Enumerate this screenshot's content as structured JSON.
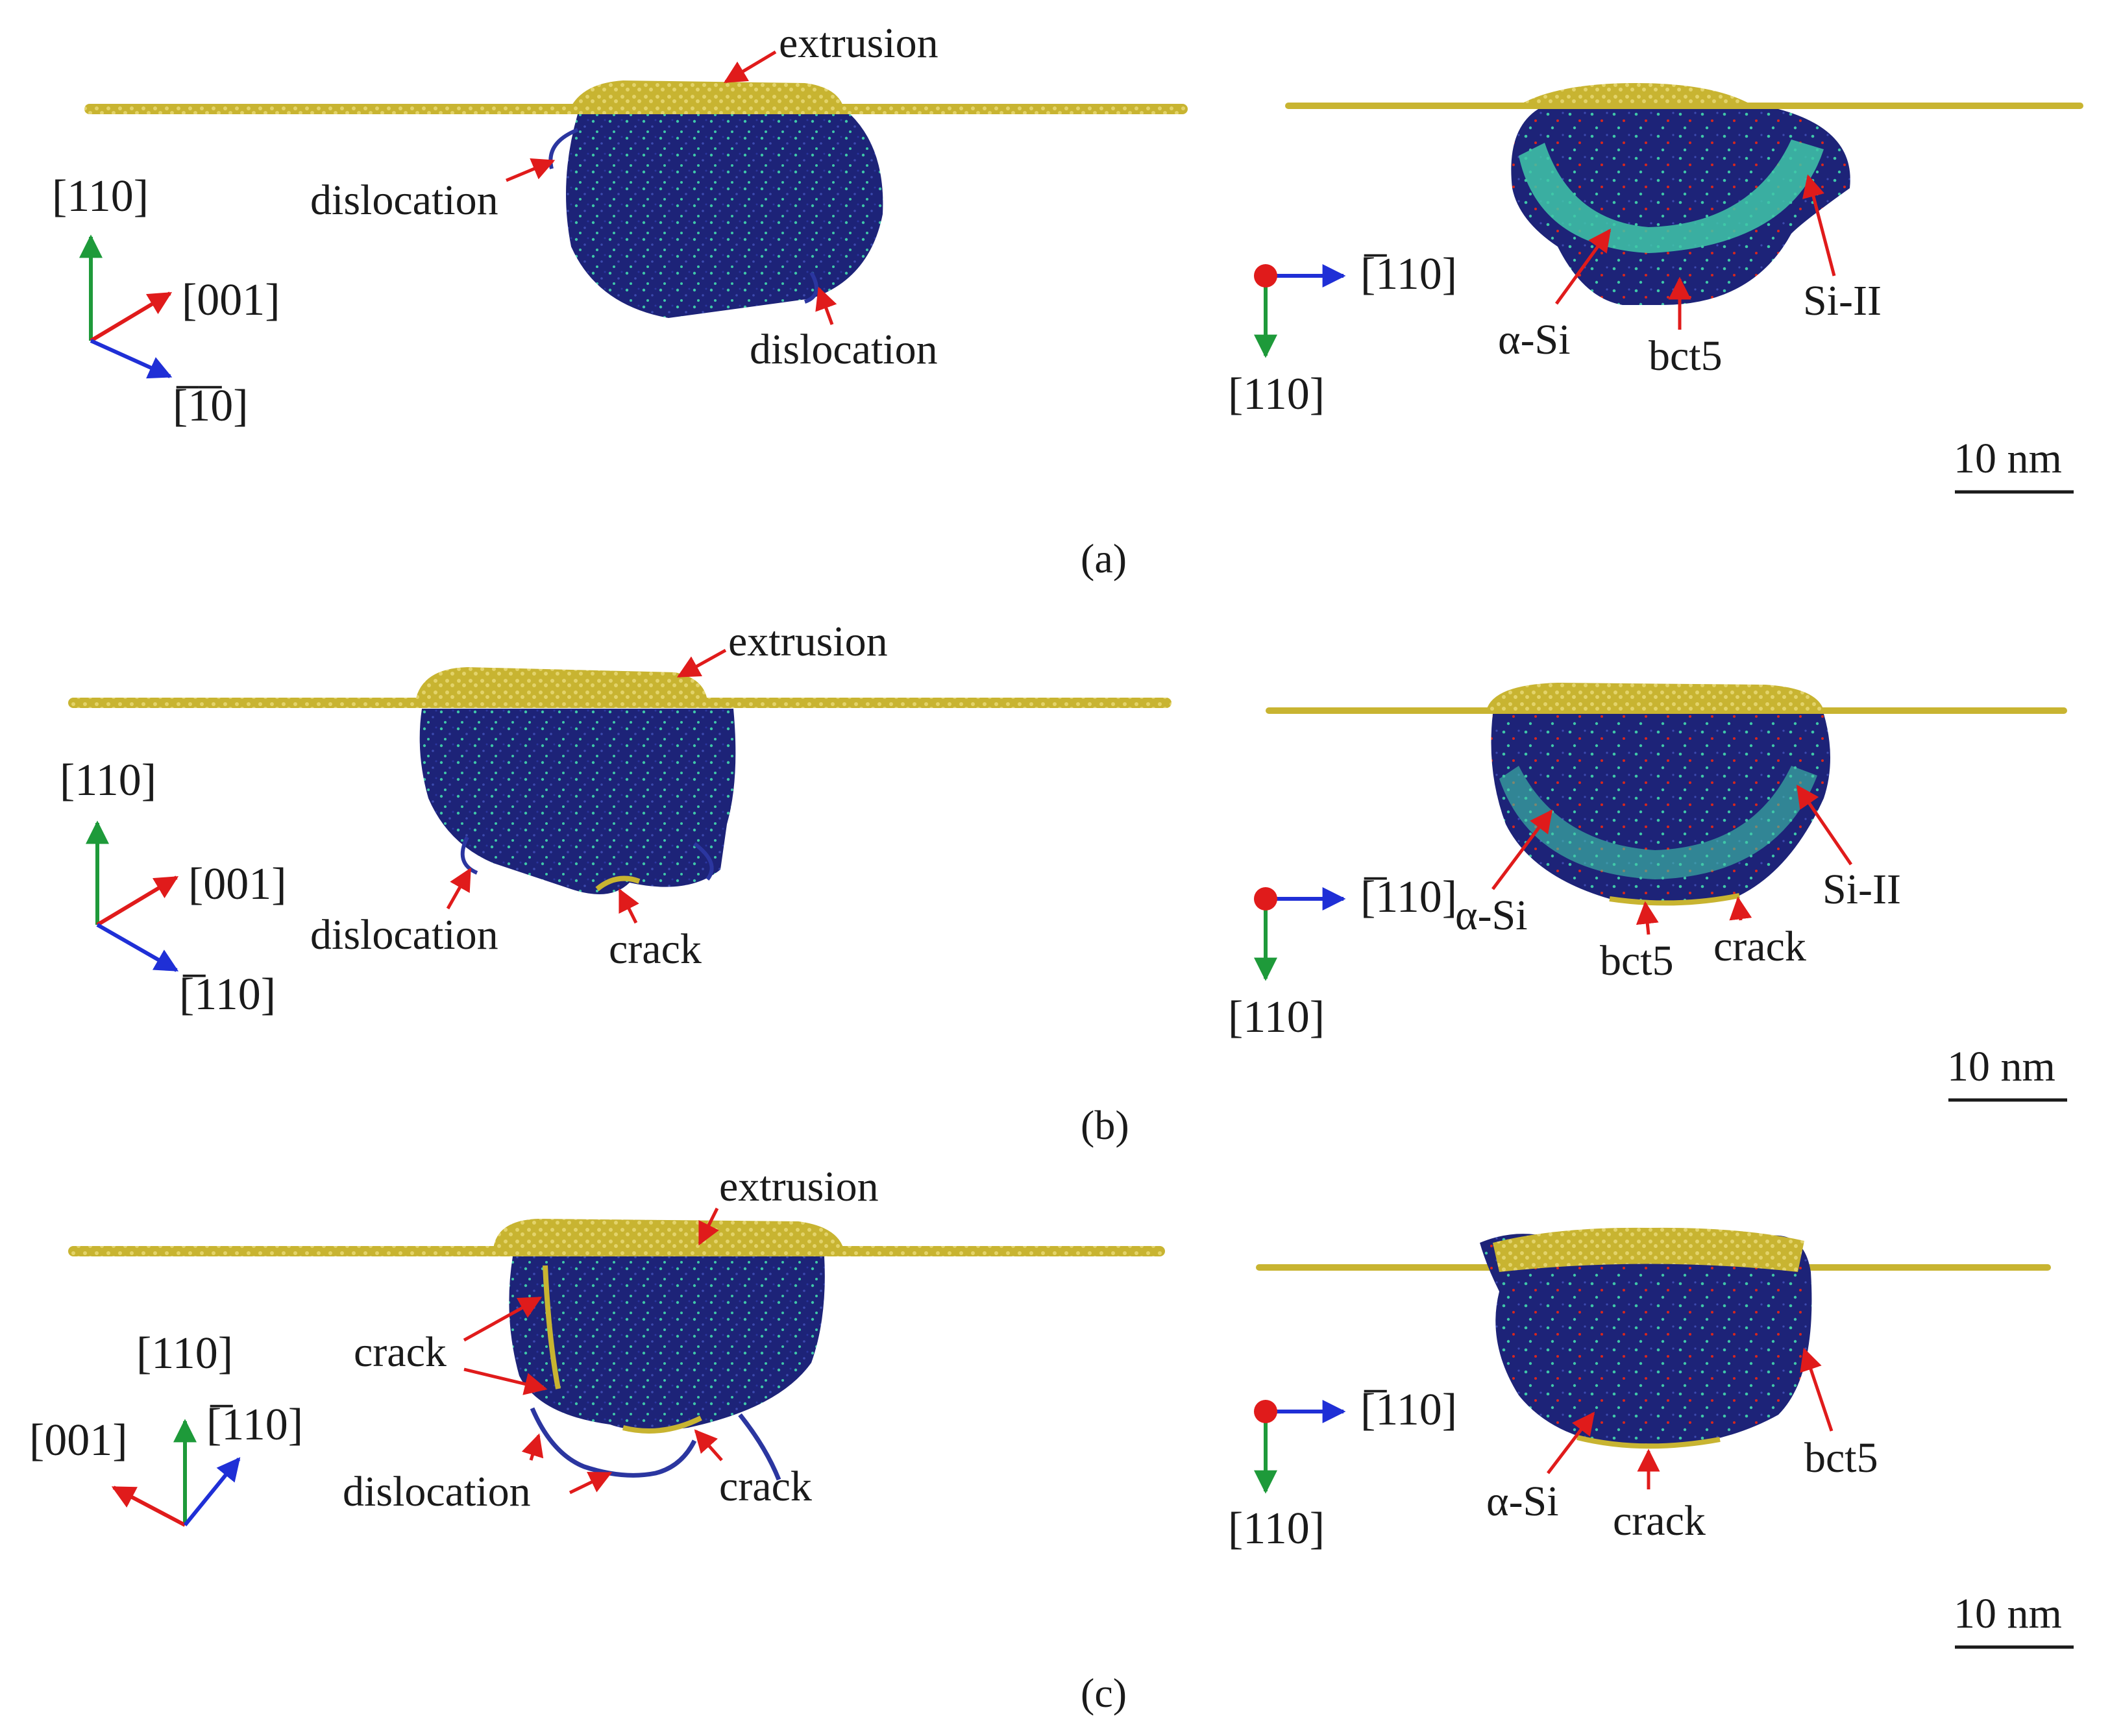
{
  "colors": {
    "surface": "#c8b431",
    "surface_light": "#e3d36a",
    "matrix": "#1d2378",
    "matrix_dark": "#121657",
    "si_ii": "#3fc7a8",
    "bct5_dot": "#d9261c",
    "arrow_red": "#e01b1b",
    "axis_green": "#1e9a3a",
    "axis_blue": "#1f2fd6",
    "axis_red": "#e01b1b"
  },
  "panels": [
    {
      "caption": "(a)",
      "left": {
        "labels": {
          "extrusion": "extrusion",
          "dislocation1": "dislocation",
          "dislocation2": "dislocation"
        },
        "axes": {
          "up": "[110]",
          "right": "[001]",
          "down": "[̅1̅0]"
        }
      },
      "right": {
        "labels": {
          "alpha_si": "α-Si",
          "bct5": "bct5",
          "si_ii": "Si-II"
        },
        "axes": {
          "horizontal": "[̅110]",
          "vertical": "[110]"
        },
        "scale_bar": "10 nm"
      }
    },
    {
      "caption": "(b)",
      "left": {
        "labels": {
          "extrusion": "extrusion",
          "dislocation": "dislocation",
          "crack": "crack"
        },
        "axes": {
          "up": "[110]",
          "right": "[001]",
          "down": "[̅110]"
        }
      },
      "right": {
        "labels": {
          "alpha_si": "α-Si",
          "bct5": "bct5",
          "crack": "crack",
          "si_ii": "Si-II"
        },
        "axes": {
          "horizontal": "[̅110]",
          "vertical": "[110]"
        },
        "scale_bar": "10 nm"
      }
    },
    {
      "caption": "(c)",
      "left": {
        "labels": {
          "extrusion": "extrusion",
          "crack1": "crack",
          "dislocation": "dislocation",
          "crack2": "crack"
        },
        "axes": {
          "up": "[110]",
          "left": "[001]",
          "right": "[̅110]"
        }
      },
      "right": {
        "labels": {
          "alpha_si": "α-Si",
          "crack": "crack",
          "bct5": "bct5"
        },
        "axes": {
          "horizontal": "[̅110]",
          "vertical": "[110]"
        },
        "scale_bar": "10 nm"
      }
    }
  ]
}
